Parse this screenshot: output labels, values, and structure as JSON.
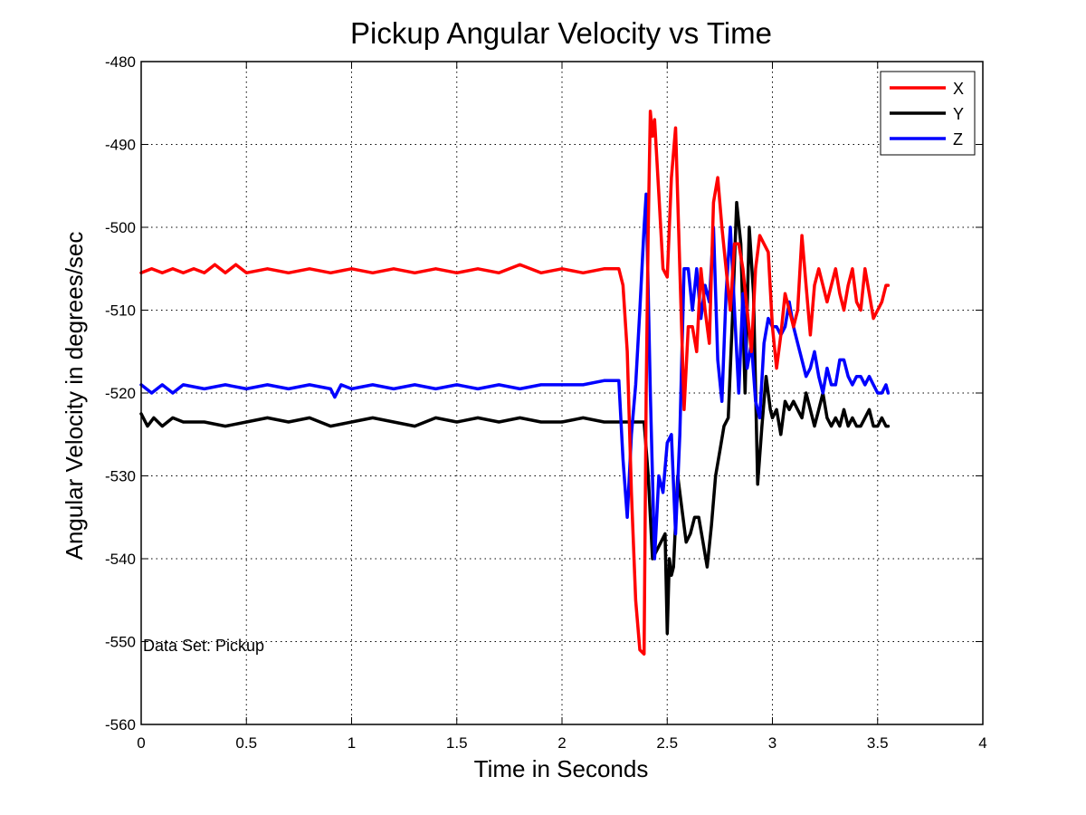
{
  "chart_data": {
    "type": "line",
    "title": "Pickup Angular Velocity vs Time",
    "xlabel": "Time in Seconds",
    "ylabel": "Angular Velocity in degrees/sec",
    "xlim": [
      0,
      4
    ],
    "ylim": [
      -560,
      -480
    ],
    "xticks": [
      0,
      0.5,
      1,
      1.5,
      2,
      2.5,
      3,
      3.5,
      4
    ],
    "xtick_labels": [
      "0",
      "0.5",
      "1",
      "1.5",
      "2",
      "2.5",
      "3",
      "3.5",
      "4"
    ],
    "yticks": [
      -480,
      -490,
      -500,
      -510,
      -520,
      -530,
      -540,
      -550,
      -560
    ],
    "ytick_labels": [
      "-480",
      "-490",
      "-500",
      "-510",
      "-520",
      "-530",
      "-540",
      "-550",
      "-560"
    ],
    "grid": true,
    "legend_position": "top-right",
    "annotation": "Data Set: Pickup",
    "series": [
      {
        "name": "X",
        "color": "#ff0000",
        "x": [
          0,
          0.05,
          0.1,
          0.15,
          0.2,
          0.25,
          0.3,
          0.35,
          0.4,
          0.45,
          0.5,
          0.6,
          0.7,
          0.8,
          0.9,
          1.0,
          1.1,
          1.2,
          1.3,
          1.4,
          1.5,
          1.6,
          1.7,
          1.8,
          1.9,
          2.0,
          2.1,
          2.2,
          2.27,
          2.29,
          2.31,
          2.33,
          2.35,
          2.37,
          2.39,
          2.4,
          2.41,
          2.42,
          2.43,
          2.44,
          2.46,
          2.48,
          2.5,
          2.52,
          2.54,
          2.56,
          2.58,
          2.6,
          2.62,
          2.64,
          2.66,
          2.68,
          2.7,
          2.72,
          2.74,
          2.76,
          2.78,
          2.8,
          2.82,
          2.84,
          2.86,
          2.88,
          2.9,
          2.92,
          2.94,
          2.96,
          2.98,
          3.0,
          3.02,
          3.04,
          3.06,
          3.08,
          3.1,
          3.12,
          3.14,
          3.16,
          3.18,
          3.2,
          3.22,
          3.24,
          3.26,
          3.28,
          3.3,
          3.32,
          3.34,
          3.36,
          3.38,
          3.4,
          3.42,
          3.44,
          3.46,
          3.48,
          3.5,
          3.52,
          3.54,
          3.55
        ],
        "values": [
          -505.5,
          -505,
          -505.5,
          -505,
          -505.5,
          -505,
          -505.5,
          -504.5,
          -505.5,
          -504.5,
          -505.5,
          -505,
          -505.5,
          -505,
          -505.5,
          -505,
          -505.5,
          -505,
          -505.5,
          -505,
          -505.5,
          -505,
          -505.5,
          -504.5,
          -505.5,
          -505,
          -505.5,
          -505,
          -505,
          -507,
          -515,
          -532,
          -545,
          -551,
          -551.5,
          -520,
          -500,
          -486,
          -489,
          -487,
          -496,
          -505,
          -506,
          -494,
          -488,
          -505,
          -522,
          -512,
          -512,
          -515,
          -505,
          -510,
          -514,
          -497,
          -494,
          -500,
          -505,
          -510,
          -502,
          -502,
          -505,
          -510,
          -515,
          -505,
          -501,
          -502,
          -503,
          -512,
          -517,
          -513,
          -508,
          -510,
          -512,
          -510,
          -501,
          -507,
          -513,
          -507,
          -505,
          -507,
          -509,
          -507,
          -505,
          -508,
          -510,
          -507,
          -505,
          -509,
          -510,
          -505,
          -508,
          -511,
          -510,
          -509,
          -507,
          -507
        ]
      },
      {
        "name": "Y",
        "color": "#000000",
        "x": [
          0,
          0.03,
          0.06,
          0.1,
          0.15,
          0.2,
          0.3,
          0.4,
          0.5,
          0.6,
          0.7,
          0.8,
          0.9,
          1.0,
          1.1,
          1.2,
          1.3,
          1.4,
          1.5,
          1.6,
          1.7,
          1.8,
          1.9,
          2.0,
          2.1,
          2.2,
          2.27,
          2.3,
          2.33,
          2.36,
          2.39,
          2.41,
          2.43,
          2.45,
          2.47,
          2.49,
          2.5,
          2.51,
          2.52,
          2.53,
          2.55,
          2.57,
          2.59,
          2.61,
          2.63,
          2.65,
          2.67,
          2.69,
          2.71,
          2.73,
          2.75,
          2.77,
          2.79,
          2.81,
          2.83,
          2.85,
          2.87,
          2.89,
          2.91,
          2.93,
          2.95,
          2.97,
          2.99,
          3.0,
          3.02,
          3.04,
          3.06,
          3.08,
          3.1,
          3.12,
          3.14,
          3.16,
          3.18,
          3.2,
          3.22,
          3.24,
          3.26,
          3.28,
          3.3,
          3.32,
          3.34,
          3.36,
          3.38,
          3.4,
          3.42,
          3.44,
          3.46,
          3.48,
          3.5,
          3.52,
          3.54,
          3.55
        ],
        "values": [
          -522.5,
          -524,
          -523,
          -524,
          -523,
          -523.5,
          -523.5,
          -524,
          -523.5,
          -523,
          -523.5,
          -523,
          -524,
          -523.5,
          -523,
          -523.5,
          -524,
          -523,
          -523.5,
          -523,
          -523.5,
          -523,
          -523.5,
          -523.5,
          -523,
          -523.5,
          -523.5,
          -523.5,
          -523.5,
          -523.5,
          -523.5,
          -530,
          -540,
          -539,
          -538,
          -537,
          -549,
          -540,
          -542,
          -541,
          -530,
          -534,
          -538,
          -537,
          -535,
          -535,
          -538,
          -541,
          -536,
          -530,
          -527,
          -524,
          -523,
          -511,
          -497,
          -502,
          -520,
          -500,
          -508,
          -531,
          -524,
          -518,
          -522,
          -523,
          -522,
          -525,
          -521,
          -522,
          -521,
          -522,
          -523,
          -520,
          -522,
          -524,
          -522,
          -520,
          -523,
          -524,
          -523,
          -524,
          -522,
          -524,
          -523,
          -524,
          -524,
          -523,
          -522,
          -524,
          -524,
          -523,
          -524,
          -524
        ]
      },
      {
        "name": "Z",
        "color": "#0000ff",
        "x": [
          0,
          0.05,
          0.1,
          0.15,
          0.2,
          0.3,
          0.4,
          0.5,
          0.6,
          0.7,
          0.8,
          0.9,
          0.92,
          0.95,
          1.0,
          1.1,
          1.2,
          1.3,
          1.4,
          1.5,
          1.6,
          1.7,
          1.8,
          1.9,
          2.0,
          2.1,
          2.2,
          2.27,
          2.29,
          2.31,
          2.33,
          2.35,
          2.37,
          2.39,
          2.4,
          2.42,
          2.44,
          2.46,
          2.48,
          2.5,
          2.52,
          2.54,
          2.56,
          2.58,
          2.6,
          2.62,
          2.64,
          2.66,
          2.68,
          2.7,
          2.72,
          2.74,
          2.76,
          2.78,
          2.8,
          2.82,
          2.84,
          2.86,
          2.88,
          2.9,
          2.92,
          2.94,
          2.96,
          2.98,
          3.0,
          3.02,
          3.04,
          3.06,
          3.08,
          3.1,
          3.12,
          3.14,
          3.16,
          3.18,
          3.2,
          3.22,
          3.24,
          3.26,
          3.28,
          3.3,
          3.32,
          3.34,
          3.36,
          3.38,
          3.4,
          3.42,
          3.44,
          3.46,
          3.48,
          3.5,
          3.52,
          3.54,
          3.55
        ],
        "values": [
          -519,
          -520,
          -519,
          -520,
          -519,
          -519.5,
          -519,
          -519.5,
          -519,
          -519.5,
          -519,
          -519.5,
          -520.5,
          -519,
          -519.5,
          -519,
          -519.5,
          -519,
          -519.5,
          -519,
          -519.5,
          -519,
          -519.5,
          -519,
          -519,
          -519,
          -518.5,
          -518.5,
          -528,
          -535,
          -525,
          -519,
          -510,
          -500,
          -496,
          -520,
          -540,
          -530,
          -532,
          -526,
          -525,
          -537,
          -525,
          -505,
          -505,
          -510,
          -505,
          -511,
          -507,
          -509,
          -500,
          -516,
          -521,
          -508,
          -500,
          -510,
          -520,
          -508,
          -517,
          -514,
          -521,
          -523,
          -514,
          -511,
          -512,
          -512,
          -513,
          -512,
          -509,
          -512,
          -514,
          -516,
          -518,
          -517,
          -515,
          -518,
          -520,
          -517,
          -519,
          -519,
          -516,
          -516,
          -518,
          -519,
          -518,
          -518,
          -519,
          -518,
          -519,
          -520,
          -520,
          -519,
          -520
        ]
      }
    ]
  }
}
